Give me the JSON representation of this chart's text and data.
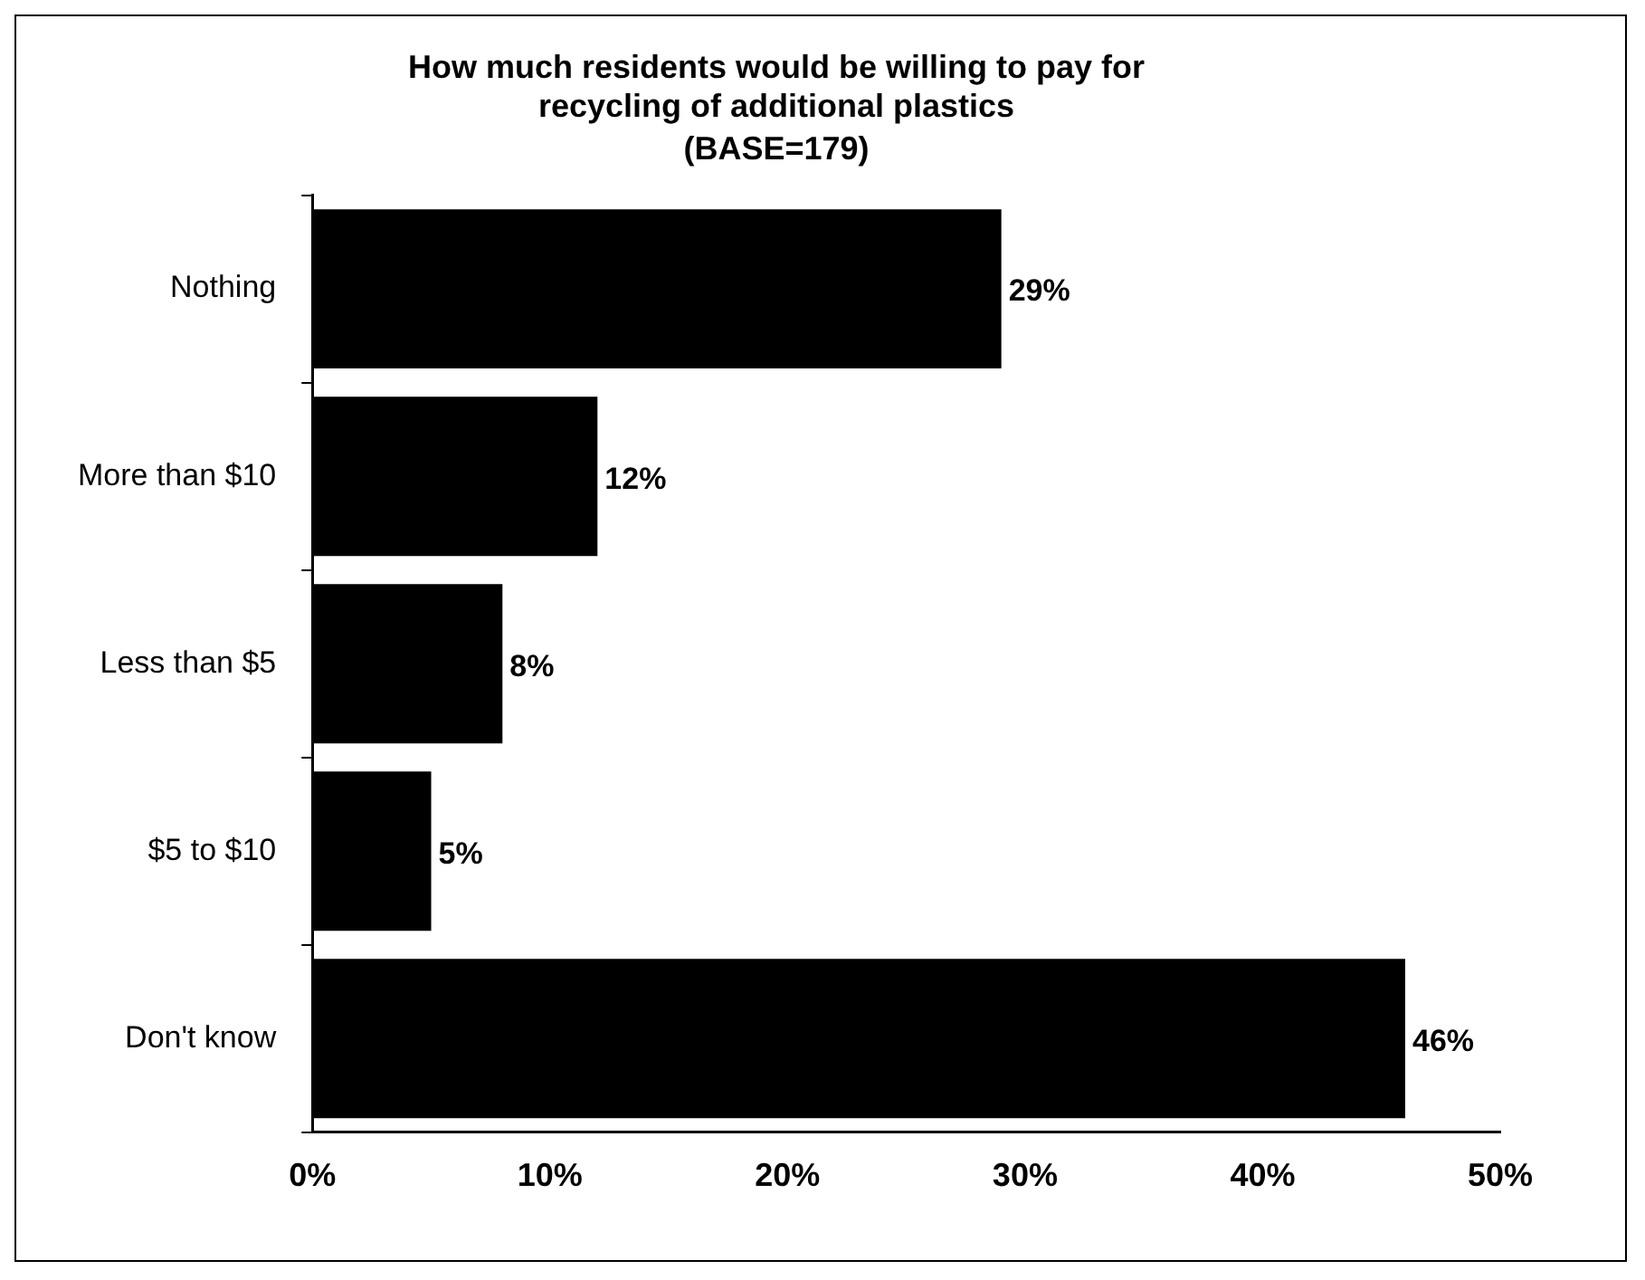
{
  "chart_data": {
    "type": "bar",
    "orientation": "horizontal",
    "title": "How much residents would be willing to pay for recycling of additional plastics",
    "subtitle": "(BASE=179)",
    "categories": [
      "Nothing",
      "More than $10",
      "Less than $5",
      "$5 to $10",
      "Don't know"
    ],
    "values": [
      29,
      12,
      8,
      5,
      46
    ],
    "color": "#000000",
    "value_labels": [
      "29%",
      "12%",
      "8%",
      "5%",
      "46%"
    ],
    "xlim": [
      0,
      50
    ],
    "xticks": [
      {
        "value": 0,
        "label": "0%"
      },
      {
        "value": 10,
        "label": "10%"
      },
      {
        "value": 20,
        "label": "20%"
      },
      {
        "value": 30,
        "label": "30%"
      },
      {
        "value": 40,
        "label": "40%"
      },
      {
        "value": 50,
        "label": "50%"
      }
    ],
    "grid": false,
    "legend": false
  }
}
